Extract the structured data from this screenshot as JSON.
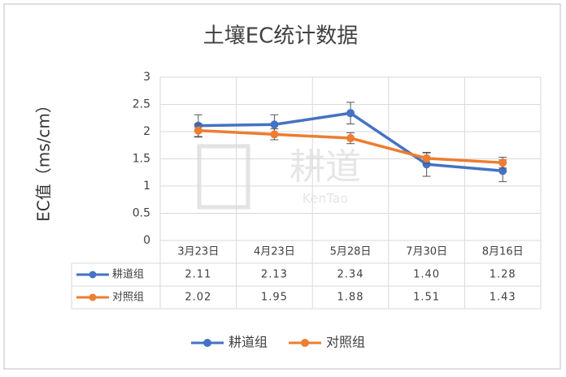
{
  "chart_data": {
    "type": "line",
    "title": "土壤EC统计数据",
    "y_label": "EC值（ms/cm）",
    "categories": [
      "3月23日",
      "4月23日",
      "5月28日",
      "7月30日",
      "8月16日"
    ],
    "series": [
      {
        "name": "耕道组",
        "color": "#4472c4",
        "values": [
          2.11,
          2.13,
          2.34,
          1.4,
          1.28
        ],
        "value_labels": [
          "2.11",
          "2.13",
          "2.34",
          "1.40",
          "1.28"
        ],
        "errors": [
          0.2,
          0.18,
          0.2,
          0.22,
          0.2
        ]
      },
      {
        "name": "对照组",
        "color": "#ed7d31",
        "values": [
          2.02,
          1.95,
          1.88,
          1.51,
          1.43
        ],
        "value_labels": [
          "2.02",
          "1.95",
          "1.88",
          "1.51",
          "1.43"
        ],
        "errors": [
          0.12,
          0.1,
          0.1,
          0.1,
          0.1
        ]
      }
    ],
    "ylim": [
      0,
      3
    ],
    "yticks": [
      0,
      0.5,
      1,
      1.5,
      2,
      2.5,
      3
    ],
    "grid": true,
    "legend": "bottom",
    "watermark": {
      "text": "耕道",
      "subtext": "KenTao"
    }
  }
}
